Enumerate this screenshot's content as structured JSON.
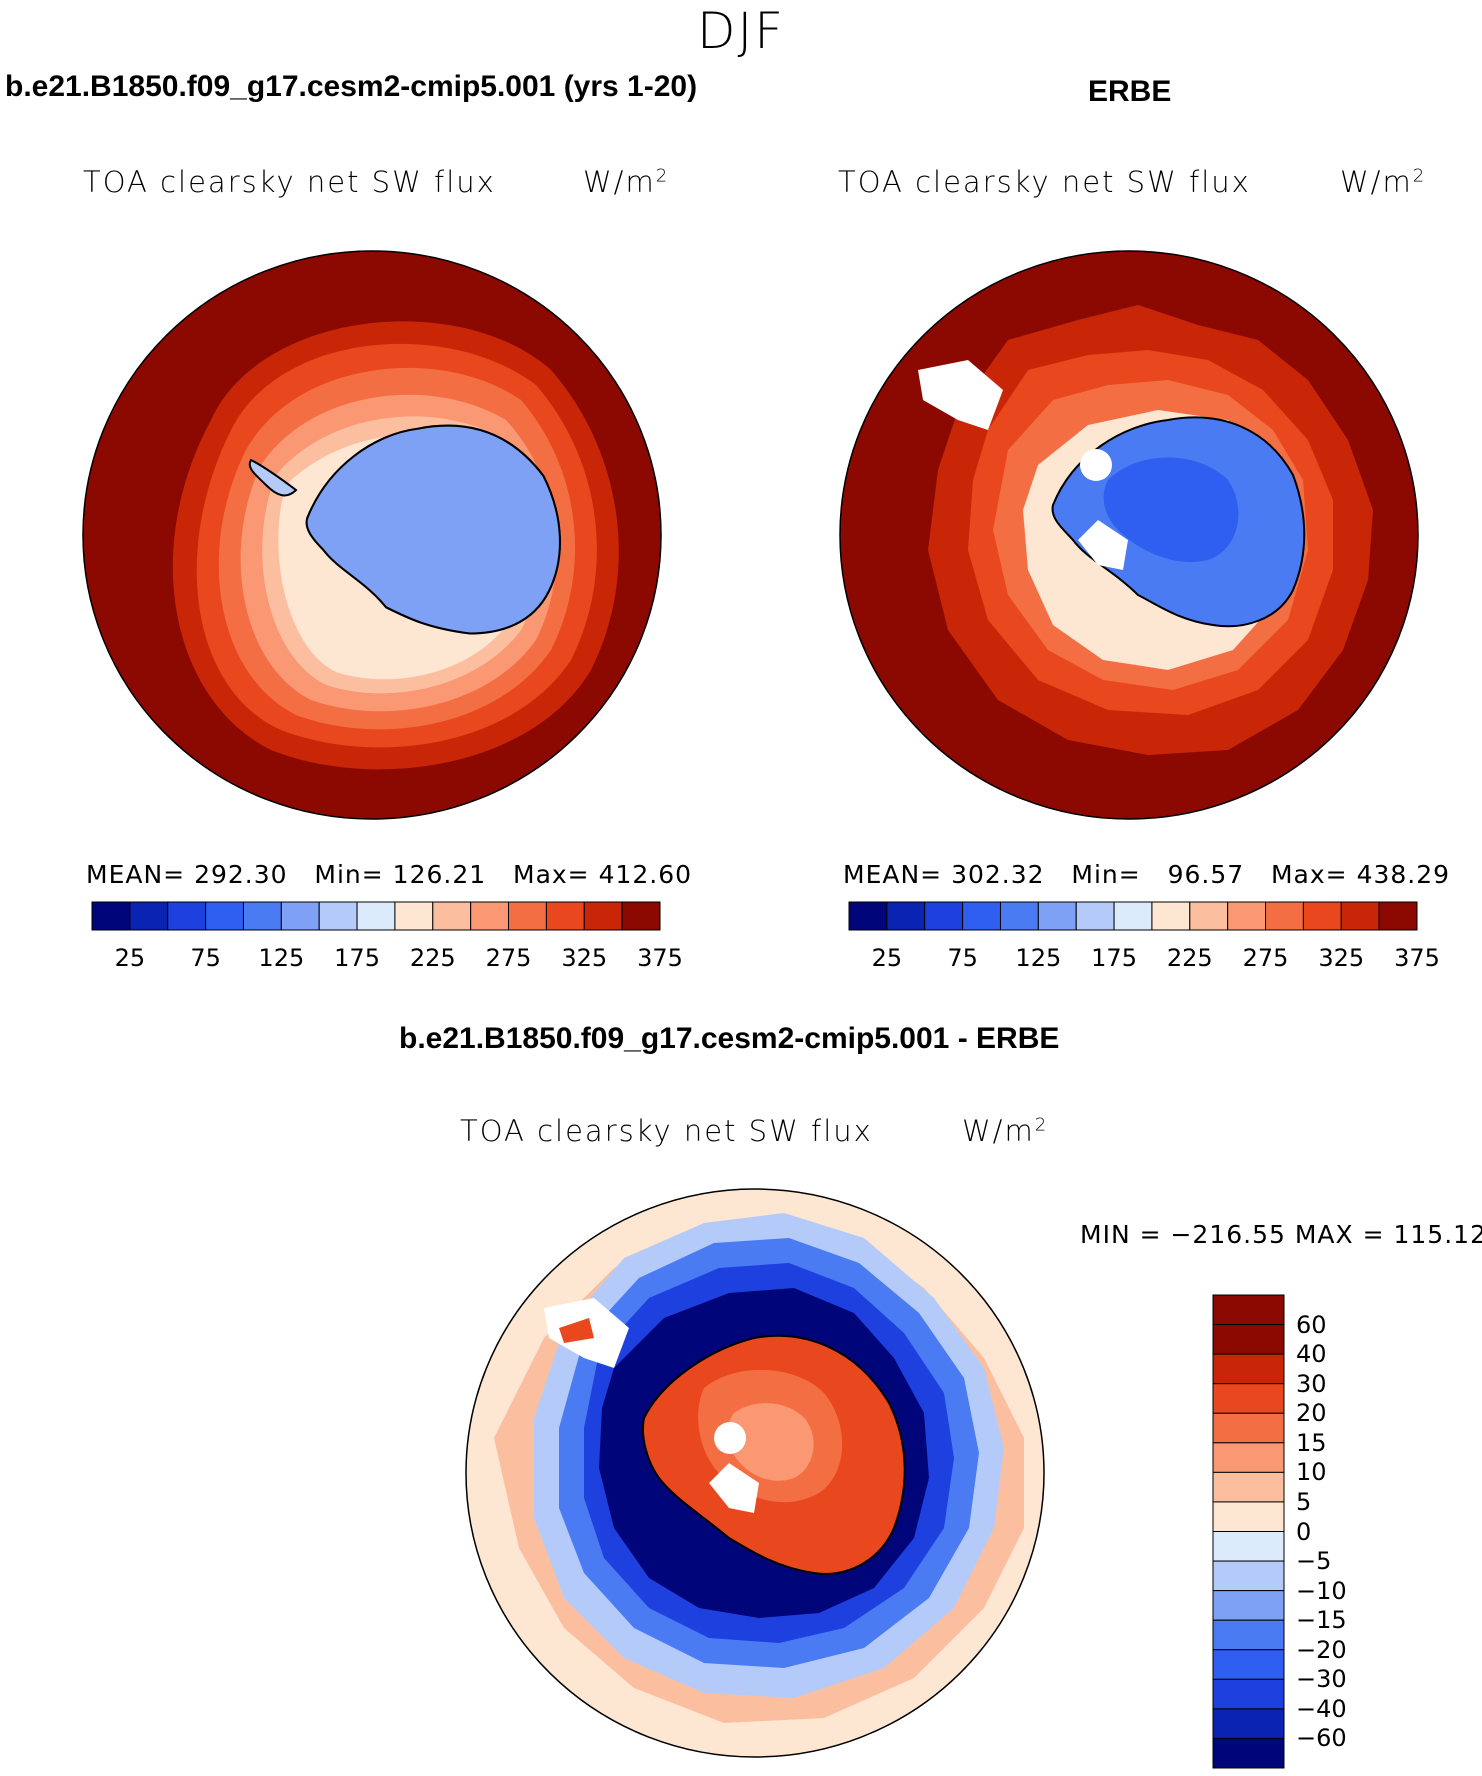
{
  "figure": {
    "season": "DJF",
    "panels": [
      {
        "case": "b.e21.B1850.f09_g17.cesm2-cmip5.001 (yrs 1-20)",
        "variable": "TOA clearsky net SW flux",
        "units_base": "W/m",
        "units_exp": "2",
        "stats": {
          "mean_label": "MEAN=",
          "mean": "292.30",
          "min_label": "Min=",
          "min": "126.21",
          "max_label": "Max=",
          "max": "412.60"
        }
      },
      {
        "case": "ERBE",
        "variable": "TOA clearsky net SW flux",
        "units_base": "W/m",
        "units_exp": "2",
        "stats": {
          "mean_label": "MEAN=",
          "mean": "302.32",
          "min_label": "Min=",
          "min": "96.57",
          "max_label": "Max=",
          "max": "438.29"
        }
      },
      {
        "case": "b.e21.B1850.f09_g17.cesm2-cmip5.001 - ERBE",
        "variable": "TOA clearsky net SW flux",
        "units_base": "W/m",
        "units_exp": "2",
        "range": "MIN = −216.55  MAX = 115.12"
      }
    ]
  },
  "chart_data": [
    {
      "type": "heatmap",
      "title": "b.e21.B1850.f09_g17.cesm2-cmip5.001 (yrs 1-20)",
      "projection": "south polar stereographic",
      "colorbar": {
        "ticks": [
          "25",
          "75",
          "125",
          "175",
          "225",
          "275",
          "325",
          "375"
        ],
        "colors": [
          "#00057a",
          "#0a23b3",
          "#1d40df",
          "#2f5ff0",
          "#4a7bf3",
          "#7ea1f6",
          "#b4cbf9",
          "#dcebfb",
          "#fde6d2",
          "#fbbfa0",
          "#f99872",
          "#f46e44",
          "#e9471d",
          "#c92608",
          "#8c0902"
        ]
      },
      "stats": {
        "mean": 292.3,
        "min": 126.21,
        "max": 412.6
      }
    },
    {
      "type": "heatmap",
      "title": "ERBE",
      "projection": "south polar stereographic",
      "colorbar": {
        "ticks": [
          "25",
          "75",
          "125",
          "175",
          "225",
          "275",
          "325",
          "375"
        ],
        "colors": [
          "#00057a",
          "#0a23b3",
          "#1d40df",
          "#2f5ff0",
          "#4a7bf3",
          "#7ea1f6",
          "#b4cbf9",
          "#dcebfb",
          "#fde6d2",
          "#fbbfa0",
          "#f99872",
          "#f46e44",
          "#e9471d",
          "#c92608",
          "#8c0902"
        ]
      },
      "stats": {
        "mean": 302.32,
        "min": 96.57,
        "max": 438.29
      }
    },
    {
      "type": "heatmap",
      "title": "b.e21.B1850.f09_g17.cesm2-cmip5.001 - ERBE",
      "projection": "south polar stereographic",
      "colorbar": {
        "ticks": [
          "60",
          "40",
          "30",
          "20",
          "15",
          "10",
          "5",
          "0",
          "−5",
          "−10",
          "−15",
          "−20",
          "−30",
          "−40",
          "−60"
        ],
        "colors": [
          "#8c0902",
          "#c92608",
          "#e9471d",
          "#f46e44",
          "#f99872",
          "#fbbfa0",
          "#fde6d2",
          "#dcebfb",
          "#b4cbf9",
          "#7ea1f6",
          "#4a7bf3",
          "#2f5ff0",
          "#1d40df",
          "#0a23b3",
          "#00057a"
        ]
      },
      "stats": {
        "min": -216.55,
        "max": 115.12
      }
    }
  ]
}
